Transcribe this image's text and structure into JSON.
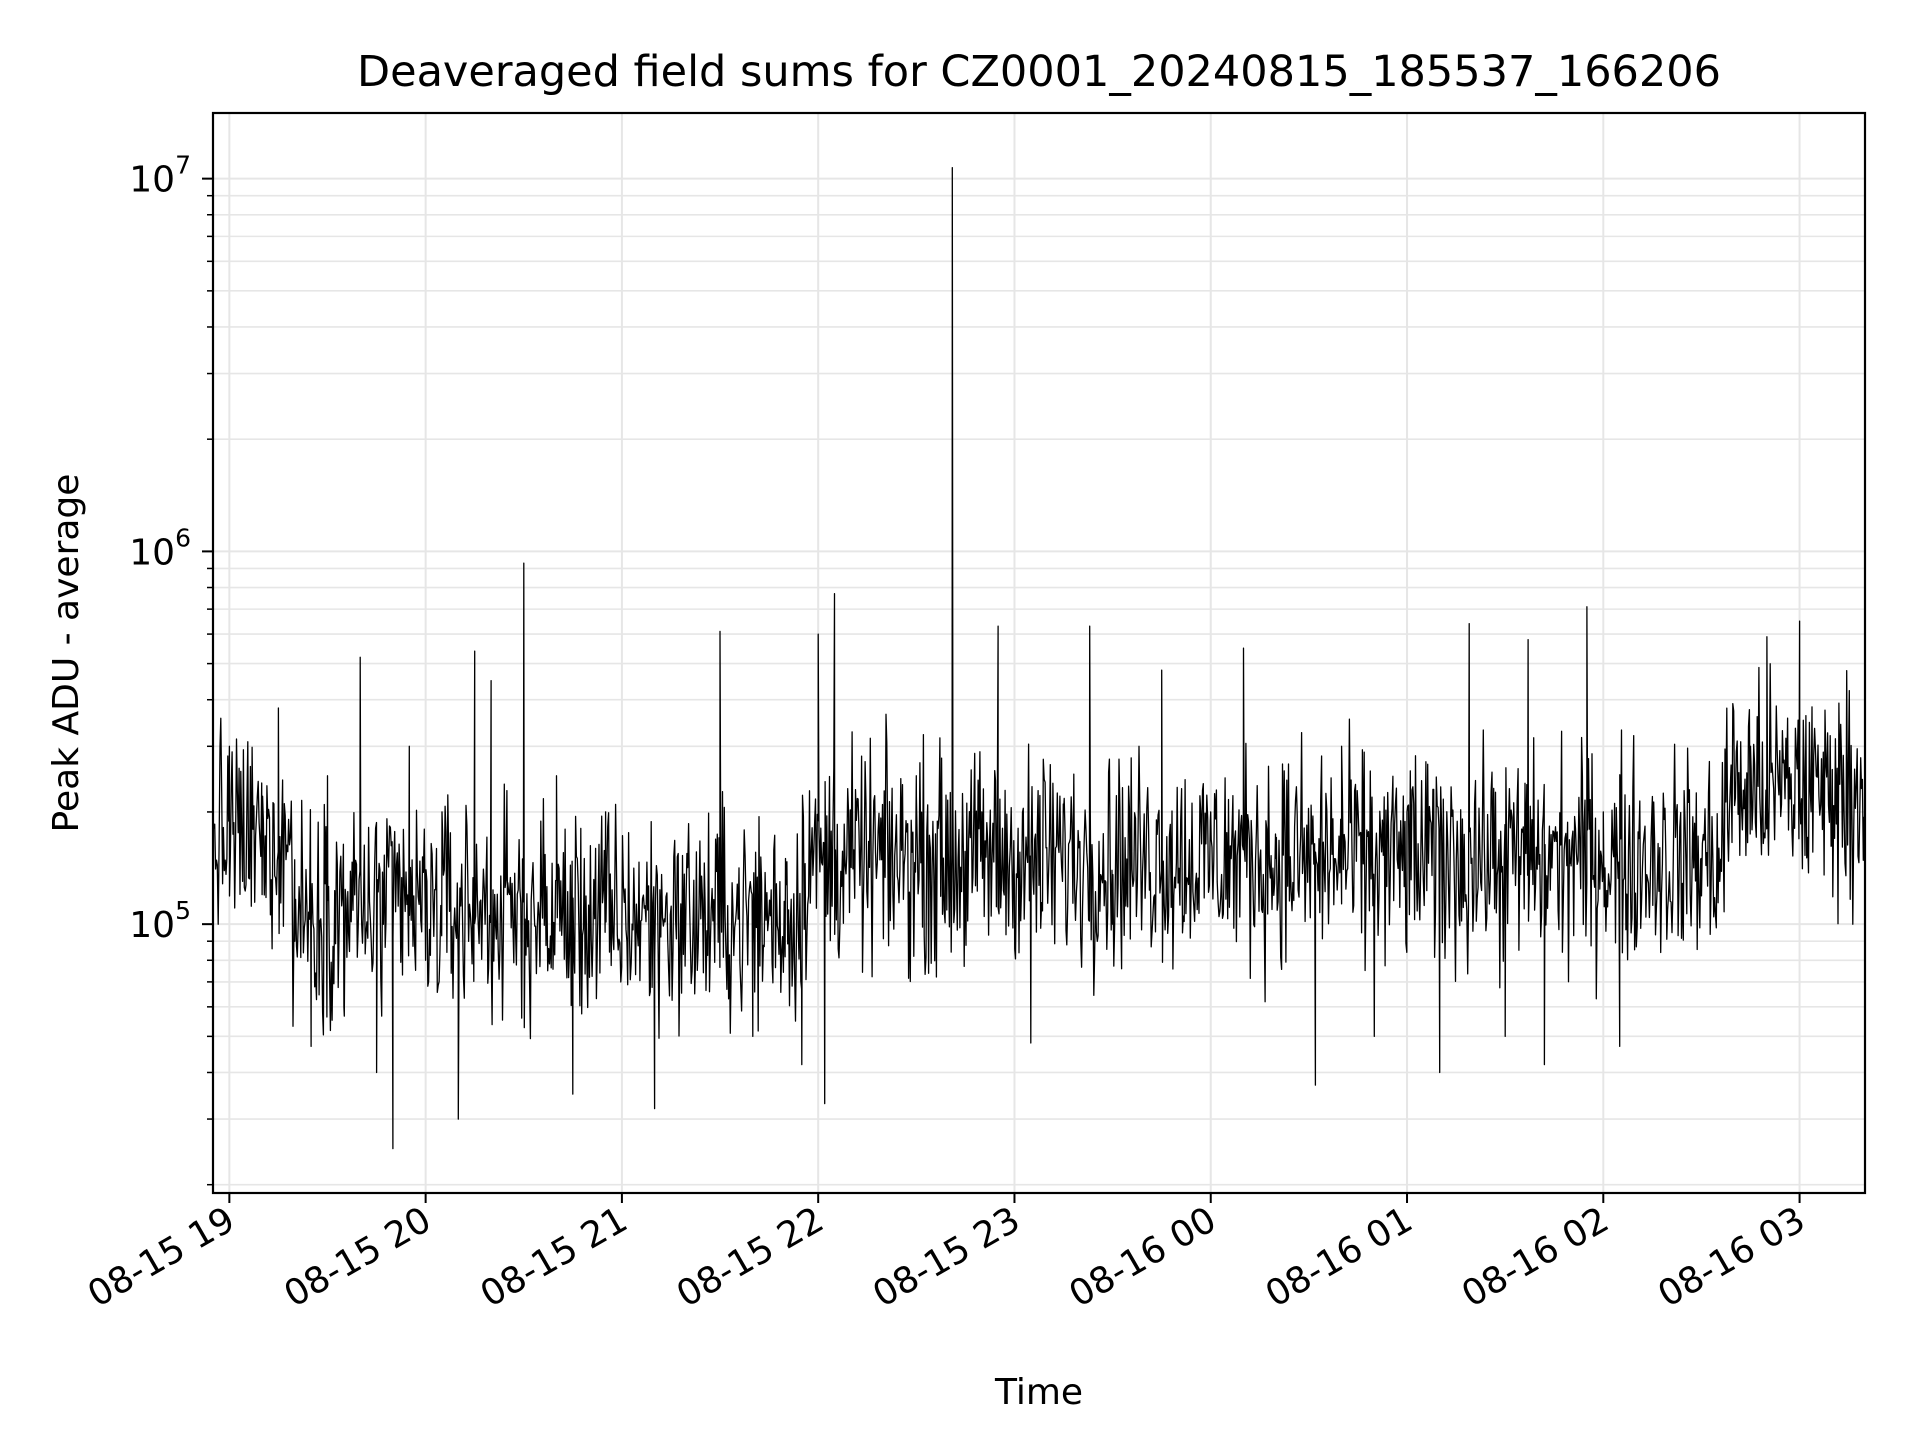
{
  "chart_data": {
    "type": "line",
    "title": "Deaveraged field sums for CZ0001_20240815_185537_166206",
    "xlabel": "Time",
    "ylabel": "Peak ADU - average",
    "yscale": "log",
    "xlim": [
      "2024-08-15 18:55",
      "2024-08-16 03:20"
    ],
    "ylim": [
      19000,
      15000000
    ],
    "x_ticks": [
      "08-15 19",
      "08-15 20",
      "08-15 21",
      "08-15 22",
      "08-15 23",
      "08-16 00",
      "08-16 01",
      "08-16 02",
      "08-16 03"
    ],
    "y_ticks": [
      {
        "base": "10",
        "exp": "5",
        "value": 100000
      },
      {
        "base": "10",
        "exp": "6",
        "value": 1000000
      },
      {
        "base": "10",
        "exp": "7",
        "value": 10000000
      }
    ],
    "grid": true,
    "line_color": "#000000",
    "grid_color": "#e6e6e6",
    "series": [
      {
        "points": [
          [
            "2024-08-15 18:55",
            180000
          ],
          [
            "2024-08-15 19:00",
            300000
          ],
          [
            "2024-08-15 19:10",
            120000
          ],
          [
            "2024-08-15 19:15",
            380000
          ],
          [
            "2024-08-15 19:20",
            90000
          ],
          [
            "2024-08-15 19:25",
            47000
          ],
          [
            "2024-08-15 19:30",
            250000
          ],
          [
            "2024-08-15 19:35",
            60000
          ],
          [
            "2024-08-15 19:40",
            520000
          ],
          [
            "2024-08-15 19:45",
            40000
          ],
          [
            "2024-08-15 19:50",
            25000
          ],
          [
            "2024-08-15 19:55",
            300000
          ],
          [
            "2024-08-15 20:00",
            80000
          ],
          [
            "2024-08-15 20:05",
            200000
          ],
          [
            "2024-08-15 20:10",
            30000
          ],
          [
            "2024-08-15 20:15",
            540000
          ],
          [
            "2024-08-15 20:20",
            450000
          ],
          [
            "2024-08-15 20:25",
            120000
          ],
          [
            "2024-08-15 20:30",
            930000
          ],
          [
            "2024-08-15 20:35",
            80000
          ],
          [
            "2024-08-15 20:40",
            250000
          ],
          [
            "2024-08-15 20:45",
            35000
          ],
          [
            "2024-08-15 20:50",
            90000
          ],
          [
            "2024-08-15 20:55",
            200000
          ],
          [
            "2024-08-15 21:00",
            100000
          ],
          [
            "2024-08-15 21:10",
            32000
          ],
          [
            "2024-08-15 21:20",
            150000
          ],
          [
            "2024-08-15 21:30",
            610000
          ],
          [
            "2024-08-15 21:40",
            50000
          ],
          [
            "2024-08-15 21:50",
            150000
          ],
          [
            "2024-08-15 21:55",
            42000
          ],
          [
            "2024-08-15 22:00",
            600000
          ],
          [
            "2024-08-15 22:02",
            33000
          ],
          [
            "2024-08-15 22:05",
            770000
          ],
          [
            "2024-08-15 22:10",
            150000
          ],
          [
            "2024-08-15 22:20",
            120000
          ],
          [
            "2024-08-15 22:30",
            250000
          ],
          [
            "2024-08-15 22:41",
            10700000
          ],
          [
            "2024-08-15 22:50",
            200000
          ],
          [
            "2024-08-15 22:55",
            630000
          ],
          [
            "2024-08-15 23:00",
            120000
          ],
          [
            "2024-08-15 23:05",
            48000
          ],
          [
            "2024-08-15 23:15",
            200000
          ],
          [
            "2024-08-15 23:23",
            630000
          ],
          [
            "2024-08-15 23:30",
            100000
          ],
          [
            "2024-08-15 23:45",
            480000
          ],
          [
            "2024-08-16 00:00",
            200000
          ],
          [
            "2024-08-16 00:10",
            550000
          ],
          [
            "2024-08-16 00:20",
            150000
          ],
          [
            "2024-08-16 00:32",
            37000
          ],
          [
            "2024-08-16 00:40",
            300000
          ],
          [
            "2024-08-16 00:50",
            50000
          ],
          [
            "2024-08-16 01:00",
            200000
          ],
          [
            "2024-08-16 01:10",
            40000
          ],
          [
            "2024-08-16 01:19",
            640000
          ],
          [
            "2024-08-16 01:30",
            50000
          ],
          [
            "2024-08-16 01:37",
            580000
          ],
          [
            "2024-08-16 01:42",
            42000
          ],
          [
            "2024-08-16 01:50",
            150000
          ],
          [
            "2024-08-16 01:55",
            710000
          ],
          [
            "2024-08-16 02:00",
            200000
          ],
          [
            "2024-08-16 02:05",
            47000
          ],
          [
            "2024-08-16 02:15",
            220000
          ],
          [
            "2024-08-16 02:30",
            150000
          ],
          [
            "2024-08-16 02:45",
            300000
          ],
          [
            "2024-08-16 02:50",
            590000
          ],
          [
            "2024-08-16 03:00",
            650000
          ],
          [
            "2024-08-16 03:10",
            260000
          ],
          [
            "2024-08-16 03:20",
            200000
          ]
        ]
      }
    ]
  }
}
